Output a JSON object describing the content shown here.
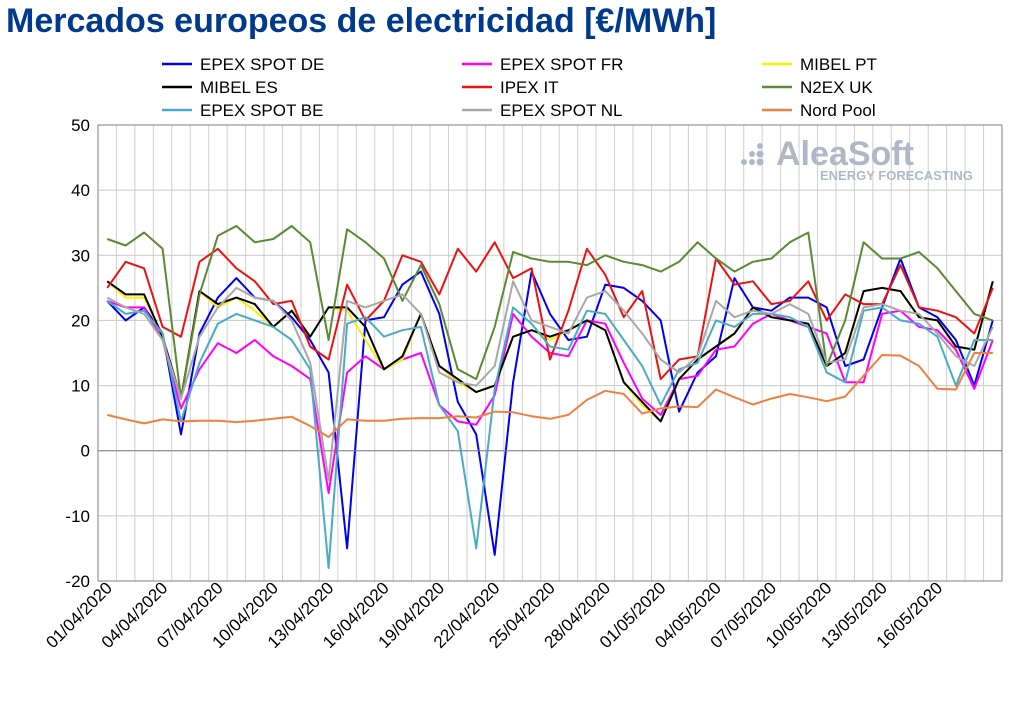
{
  "title": "Mercados europeos de electricidad [€/MWh]",
  "logo": {
    "text": "AleaSoft",
    "subtitle": "ENERGY FORECASTING"
  },
  "chart_data": {
    "type": "line",
    "title": "Mercados europeos de electricidad [€/MWh]",
    "xlabel": "",
    "ylabel": "",
    "ylim": [
      -20,
      50
    ],
    "yticks": [
      50,
      40,
      30,
      20,
      10,
      0,
      -10,
      -20
    ],
    "grid": true,
    "legend_position": "top",
    "x_tick_labels": [
      "01/04/2020",
      "04/04/2020",
      "07/04/2020",
      "10/04/2020",
      "13/04/2020",
      "16/04/2020",
      "19/04/2020",
      "22/04/2020",
      "25/04/2020",
      "28/04/2020",
      "01/05/2020",
      "04/05/2020",
      "07/05/2020",
      "10/05/2020",
      "13/05/2020",
      "16/05/2020"
    ],
    "x": [
      "01/04",
      "02/04",
      "03/04",
      "04/04",
      "05/04",
      "06/04",
      "07/04",
      "08/04",
      "09/04",
      "10/04",
      "11/04",
      "12/04",
      "13/04",
      "14/04",
      "15/04",
      "16/04",
      "17/04",
      "18/04",
      "19/04",
      "20/04",
      "21/04",
      "22/04",
      "23/04",
      "24/04",
      "25/04",
      "26/04",
      "27/04",
      "28/04",
      "29/04",
      "30/04",
      "01/05",
      "02/05",
      "03/05",
      "04/05",
      "05/05",
      "06/05",
      "07/05",
      "08/05",
      "09/05",
      "10/05",
      "11/05",
      "12/05",
      "13/05",
      "14/05",
      "15/05",
      "16/05",
      "17/05",
      "18/05",
      "19/05"
    ],
    "series": [
      {
        "name": "EPEX SPOT DE",
        "color": "#0000ee",
        "values": [
          23.0,
          20.0,
          22.0,
          18.0,
          2.5,
          18.0,
          23.5,
          26.5,
          23.5,
          23.0,
          20.5,
          17.0,
          12.0,
          -15.0,
          20.0,
          20.5,
          25.5,
          27.5,
          21.0,
          7.5,
          2.5,
          -16.0,
          10.5,
          27.5,
          21.0,
          17.0,
          17.5,
          25.5,
          25.0,
          23.0,
          20.0,
          6.0,
          12.0,
          14.5,
          26.5,
          22.0,
          21.5,
          23.5,
          23.5,
          22.0,
          13.0,
          14.0,
          22.0,
          29.5,
          22.0,
          20.5,
          17.0,
          10.0,
          20.0
        ]
      },
      {
        "name": "EPEX SPOT FR",
        "color": "#ff00ff",
        "values": [
          23.0,
          22.0,
          22.0,
          17.0,
          6.5,
          12.5,
          16.5,
          15.0,
          17.0,
          14.5,
          13.0,
          11.0,
          -6.5,
          12.0,
          14.5,
          12.5,
          14.0,
          15.0,
          7.0,
          4.5,
          4.0,
          8.5,
          21.0,
          17.5,
          15.0,
          14.5,
          20.0,
          19.5,
          13.5,
          8.0,
          5.5,
          11.0,
          11.5,
          15.5,
          16.0,
          19.5,
          21.0,
          20.0,
          19.0,
          18.0,
          10.5,
          10.5,
          21.0,
          21.5,
          19.0,
          18.5,
          15.5,
          9.5,
          17.0
        ]
      },
      {
        "name": "MIBEL PT",
        "color": "#ffee00",
        "values": [
          26.0,
          23.5,
          23.5,
          17.5,
          8.0,
          24.5,
          22.0,
          23.5,
          21.5,
          19.0,
          21.5,
          17.5,
          22.0,
          21.5,
          17.0,
          12.5,
          14.0,
          21.0,
          13.0,
          10.5,
          9.0,
          10.0,
          17.5,
          18.5,
          17.0,
          18.5,
          20.0,
          18.5,
          10.5,
          7.0,
          4.5,
          11.0,
          14.0,
          16.0,
          18.0,
          22.0,
          20.5,
          20.0,
          19.5,
          13.0,
          15.0,
          24.5,
          25.0,
          24.5,
          20.5,
          20.0,
          16.0,
          15.5,
          26.0
        ]
      },
      {
        "name": "MIBEL ES",
        "color": "#000000",
        "values": [
          26.0,
          24.0,
          24.0,
          17.5,
          8.0,
          24.5,
          22.5,
          23.5,
          22.5,
          19.0,
          21.5,
          17.5,
          22.0,
          22.0,
          19.0,
          12.5,
          14.5,
          21.0,
          13.0,
          11.0,
          9.0,
          10.0,
          17.5,
          18.5,
          17.5,
          18.5,
          20.0,
          18.5,
          10.5,
          7.5,
          4.5,
          11.0,
          14.0,
          16.0,
          18.0,
          22.0,
          20.5,
          20.0,
          19.5,
          13.0,
          15.0,
          24.5,
          25.0,
          24.5,
          20.5,
          20.0,
          16.0,
          15.5,
          26.0
        ]
      },
      {
        "name": "IPEX IT",
        "color": "#ee1111",
        "values": [
          25.0,
          29.0,
          28.0,
          19.0,
          17.5,
          29.0,
          31.0,
          28.0,
          26.0,
          22.5,
          23.0,
          16.0,
          14.0,
          25.5,
          20.0,
          23.0,
          30.0,
          29.0,
          24.0,
          31.0,
          27.5,
          32.0,
          26.5,
          28.0,
          14.0,
          21.5,
          31.0,
          27.0,
          20.5,
          24.5,
          11.0,
          14.0,
          14.5,
          29.5,
          25.5,
          26.0,
          22.5,
          23.0,
          26.0,
          20.0,
          24.0,
          22.5,
          22.5,
          28.5,
          22.0,
          21.5,
          20.5,
          18.0,
          25.0
        ]
      },
      {
        "name": "N2EX UK",
        "color": "#5a8a32",
        "values": [
          32.5,
          31.5,
          33.5,
          31.0,
          8.0,
          24.0,
          33.0,
          34.5,
          32.0,
          32.5,
          34.5,
          32.0,
          17.0,
          34.0,
          32.0,
          29.5,
          23.0,
          28.5,
          22.5,
          12.5,
          11.0,
          19.0,
          30.5,
          29.5,
          29.0,
          29.0,
          28.5,
          30.0,
          29.0,
          28.5,
          27.5,
          29.0,
          32.0,
          29.5,
          27.5,
          29.0,
          29.5,
          32.0,
          33.5,
          13.0,
          20.0,
          32.0,
          29.5,
          29.5,
          30.5,
          28.0,
          24.5,
          21.0,
          20.0
        ]
      },
      {
        "name": "EPEX SPOT BE",
        "color": "#4aabc8",
        "values": [
          23.0,
          21.0,
          21.5,
          18.0,
          4.5,
          13.5,
          19.5,
          21.0,
          20.0,
          19.0,
          17.0,
          12.5,
          -18.0,
          19.5,
          20.5,
          17.5,
          18.5,
          19.0,
          7.0,
          3.0,
          -15.0,
          9.5,
          22.0,
          19.5,
          16.0,
          15.5,
          21.5,
          21.0,
          17.0,
          13.0,
          7.0,
          12.5,
          13.5,
          20.0,
          19.0,
          21.0,
          21.0,
          20.5,
          19.0,
          12.0,
          10.5,
          21.5,
          22.0,
          20.0,
          19.5,
          17.5,
          10.0,
          17.0,
          17.0
        ]
      },
      {
        "name": "EPEX SPOT NL",
        "color": "#a8a8a8",
        "values": [
          23.5,
          22.0,
          21.0,
          17.0,
          8.0,
          17.5,
          22.0,
          25.0,
          23.5,
          23.0,
          20.0,
          13.5,
          -4.5,
          23.0,
          22.0,
          23.0,
          24.0,
          21.0,
          12.0,
          10.5,
          10.0,
          13.0,
          26.0,
          20.0,
          19.0,
          18.0,
          23.5,
          24.5,
          21.5,
          18.0,
          14.0,
          12.0,
          14.5,
          23.0,
          20.5,
          21.5,
          21.0,
          22.5,
          21.0,
          13.5,
          14.0,
          22.0,
          22.5,
          21.5,
          21.0,
          18.0,
          14.5,
          13.0,
          19.0
        ]
      },
      {
        "name": "Nord Pool",
        "color": "#f08040",
        "values": [
          5.5,
          4.8,
          4.2,
          4.8,
          4.5,
          4.6,
          4.6,
          4.4,
          4.6,
          4.9,
          5.2,
          3.8,
          2.1,
          4.8,
          4.6,
          4.6,
          4.9,
          5.0,
          5.0,
          5.3,
          5.1,
          6.0,
          5.9,
          5.3,
          4.9,
          5.5,
          7.8,
          9.2,
          8.7,
          5.7,
          6.5,
          6.8,
          6.7,
          9.4,
          8.2,
          7.1,
          8.0,
          8.7,
          8.2,
          7.6,
          8.3,
          11.5,
          14.7,
          14.6,
          13.0,
          9.5,
          9.4,
          15.0,
          15.0
        ]
      }
    ]
  }
}
